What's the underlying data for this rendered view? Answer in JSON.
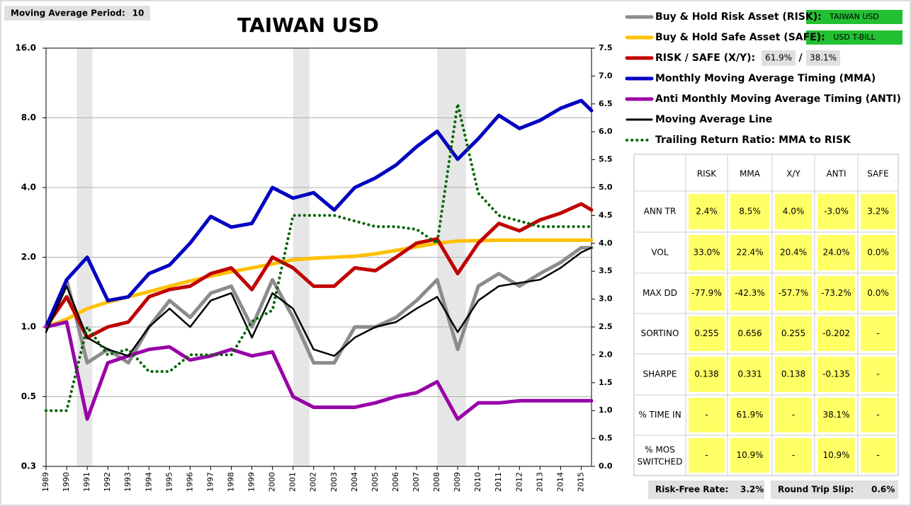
{
  "header": {
    "ma_label": "Moving Average Period:",
    "ma_value": 10
  },
  "chart_data": {
    "type": "line",
    "title": "TAIWAN USD",
    "log_scale": true,
    "grid": true,
    "x": [
      1989,
      1990,
      1991,
      1992,
      1993,
      1994,
      1995,
      1996,
      1997,
      1998,
      1999,
      2000,
      2001,
      2002,
      2003,
      2004,
      2005,
      2006,
      2007,
      2008,
      2009,
      2010,
      2011,
      2012,
      2013,
      2014,
      2015,
      2015.5
    ],
    "xlim": [
      1989,
      2015.5
    ],
    "xticks": [
      1989,
      1990,
      1991,
      1992,
      1993,
      1994,
      1995,
      1996,
      1997,
      1998,
      1999,
      2000,
      2001,
      2002,
      2003,
      2004,
      2005,
      2006,
      2007,
      2008,
      2009,
      2010,
      2011,
      2012,
      2013,
      2014,
      2015
    ],
    "ylim": [
      0.25,
      16
    ],
    "yticks": [
      {
        "value": 0.25,
        "label": "0.3"
      },
      0.5,
      {
        "value": 1,
        "label": "1.0"
      },
      {
        "value": 2,
        "label": "2.0"
      },
      {
        "value": 4,
        "label": "4.0"
      },
      {
        "value": 8,
        "label": "8.0"
      },
      {
        "value": 16,
        "label": "16.0"
      }
    ],
    "y2lim": [
      0,
      7.5
    ],
    "y2ticks": [
      {
        "value": 0,
        "label": "0.0"
      },
      0.5,
      {
        "value": 1,
        "label": "1.0"
      },
      1.5,
      {
        "value": 2,
        "label": "2.0"
      },
      2.5,
      {
        "value": 3,
        "label": "3.0"
      },
      3.5,
      {
        "value": 4,
        "label": "4.0"
      },
      4.5,
      {
        "value": 5,
        "label": "5.0"
      },
      5.5,
      {
        "value": 6,
        "label": "6.0"
      },
      6.5,
      {
        "value": 7,
        "label": "7.0"
      },
      7.5
    ],
    "shaded_periods": [
      [
        1990.5,
        1991.25
      ],
      [
        2001,
        2001.8
      ],
      [
        2008,
        2009.4
      ]
    ],
    "series": [
      {
        "name": "Buy & Hold Risk Asset (RISK):",
        "color": "#8c8c8c",
        "values": [
          1.0,
          1.6,
          0.7,
          0.8,
          0.7,
          1.0,
          1.3,
          1.1,
          1.4,
          1.5,
          1.0,
          1.6,
          1.1,
          0.7,
          0.7,
          1.0,
          1.0,
          1.1,
          1.3,
          1.6,
          0.8,
          1.5,
          1.7,
          1.5,
          1.7,
          1.9,
          2.2,
          2.2
        ]
      },
      {
        "name": "Buy & Hold Safe Asset (SAFE):",
        "color": "#ffc000",
        "values": [
          1.0,
          1.08,
          1.2,
          1.28,
          1.35,
          1.42,
          1.5,
          1.58,
          1.66,
          1.73,
          1.8,
          1.87,
          1.95,
          1.98,
          2.0,
          2.02,
          2.07,
          2.14,
          2.22,
          2.3,
          2.35,
          2.36,
          2.37,
          2.37,
          2.37,
          2.37,
          2.37,
          2.37
        ]
      },
      {
        "name": "RISK / SAFE (X/Y):",
        "color": "#c00000",
        "values": [
          1.0,
          1.35,
          0.9,
          1.0,
          1.05,
          1.35,
          1.45,
          1.5,
          1.7,
          1.8,
          1.45,
          2.0,
          1.8,
          1.5,
          1.5,
          1.8,
          1.75,
          2.0,
          2.3,
          2.4,
          1.7,
          2.3,
          2.8,
          2.6,
          2.9,
          3.1,
          3.4,
          3.2
        ]
      },
      {
        "name": "Monthly Moving Average Timing (MMA)",
        "color": "#0000c0",
        "values": [
          1.0,
          1.6,
          2.0,
          1.3,
          1.35,
          1.7,
          1.85,
          2.3,
          3.0,
          2.7,
          2.8,
          4.0,
          3.6,
          3.8,
          3.2,
          4.0,
          4.4,
          5.0,
          6.0,
          7.0,
          5.3,
          6.5,
          8.2,
          7.2,
          7.8,
          8.8,
          9.5,
          8.6
        ]
      },
      {
        "name": "Anti Monthly Moving Average Timing (ANTI)",
        "color": "#9900a8",
        "values": [
          1.0,
          1.05,
          0.4,
          0.7,
          0.75,
          0.8,
          0.82,
          0.72,
          0.75,
          0.8,
          0.75,
          0.78,
          0.5,
          0.45,
          0.45,
          0.45,
          0.47,
          0.5,
          0.52,
          0.58,
          0.4,
          0.47,
          0.47,
          0.48,
          0.48,
          0.48,
          0.48,
          0.48
        ]
      },
      {
        "name": "Moving Average Line",
        "color": "#000000",
        "values": [
          0.95,
          1.5,
          0.9,
          0.8,
          0.75,
          1.0,
          1.2,
          1.0,
          1.3,
          1.4,
          0.9,
          1.4,
          1.2,
          0.8,
          0.75,
          0.9,
          1.0,
          1.05,
          1.2,
          1.35,
          0.95,
          1.3,
          1.5,
          1.55,
          1.6,
          1.8,
          2.1,
          2.2
        ]
      },
      {
        "name": "Trailing Return Ratio: MMA to RISK",
        "color": "#006400",
        "axis": "y2",
        "dashed": true,
        "values": [
          1.0,
          1.0,
          2.5,
          2.0,
          2.1,
          1.7,
          1.7,
          2.0,
          2.0,
          2.0,
          2.6,
          2.8,
          4.5,
          4.5,
          4.5,
          4.4,
          4.3,
          4.3,
          4.25,
          4.0,
          6.5,
          4.9,
          4.5,
          4.4,
          4.3,
          4.3,
          4.3,
          4.3
        ]
      }
    ]
  },
  "legend_assets": {
    "risk": "TAIWAN USD",
    "safe": "USD T-BILL",
    "x_weight": "61.9%",
    "separator": "/",
    "y_weight": "38.1%"
  },
  "table": {
    "columns": [
      "RISK",
      "MMA",
      "X/Y",
      "ANTI",
      "SAFE"
    ],
    "rows": [
      {
        "label": "ANN TR",
        "cells": [
          "2.4%",
          "8.5%",
          "4.0%",
          "-3.0%",
          "3.2%"
        ]
      },
      {
        "label": "VOL",
        "cells": [
          "33.0%",
          "22.4%",
          "20.4%",
          "24.0%",
          "0.0%"
        ]
      },
      {
        "label": "MAX DD",
        "cells": [
          "-77.9%",
          "-42.3%",
          "-57.7%",
          "-73.2%",
          "0.0%"
        ]
      },
      {
        "label": "SORTINO",
        "cells": [
          "0.255",
          "0.656",
          "0.255",
          "-0.202",
          "-"
        ]
      },
      {
        "label": "SHARPE",
        "cells": [
          "0.138",
          "0.331",
          "0.138",
          "-0.135",
          "-"
        ]
      },
      {
        "label": "% TIME IN",
        "cells": [
          "-",
          "61.9%",
          "-",
          "38.1%",
          "-"
        ]
      },
      {
        "label": "% MOS SWITCHED",
        "cells": [
          "-",
          "10.9%",
          "-",
          "10.9%",
          "-"
        ]
      }
    ]
  },
  "footer": {
    "rf_label": "Risk-Free Rate:",
    "rf_value": "3.2%",
    "slip_label": "Round Trip Slip:",
    "slip_value": "0.6%"
  }
}
